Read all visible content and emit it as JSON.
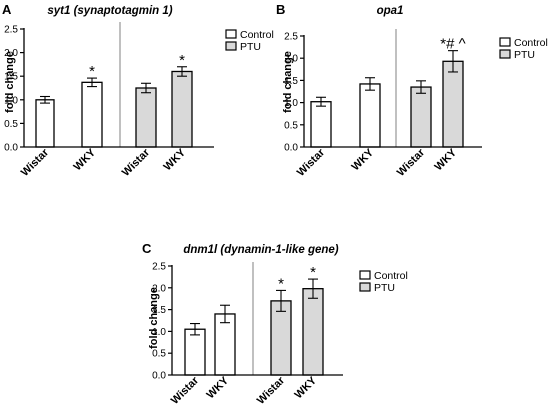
{
  "legend_colors": {
    "Control": "#ffffff",
    "PTU": "#d9d9d9"
  },
  "chart_data": [
    {
      "type": "bar",
      "panel_label": "A",
      "title": "syt1 (synaptotagmin 1)",
      "ylabel": "fold change",
      "xlabel": "",
      "ylim": [
        0,
        2.5
      ],
      "yticks": [
        "0.0",
        "0.5",
        "1.0",
        "1.5",
        "2.0",
        "2.5"
      ],
      "categories": [
        "Wistar",
        "WKY",
        "Wistar",
        "WKY"
      ],
      "groups": [
        "Control",
        "Control",
        "PTU",
        "PTU"
      ],
      "values": [
        1.0,
        1.37,
        1.25,
        1.6
      ],
      "errors": [
        0.07,
        0.09,
        0.1,
        0.1
      ],
      "annotations": [
        "",
        "*",
        "",
        "*"
      ],
      "legend": [
        "Control",
        "PTU"
      ],
      "legend_position": "top-right",
      "grid": false
    },
    {
      "type": "bar",
      "panel_label": "B",
      "title": "opa1",
      "ylabel": "fold change",
      "xlabel": "",
      "ylim": [
        0,
        2.5
      ],
      "yticks": [
        "0.0",
        "0.5",
        "1.0",
        "1.5",
        "2.0",
        "2.5"
      ],
      "categories": [
        "Wistar",
        "WKY",
        "Wistar",
        "WKY"
      ],
      "groups": [
        "Control",
        "Control",
        "PTU",
        "PTU"
      ],
      "values": [
        1.02,
        1.42,
        1.35,
        1.93
      ],
      "errors": [
        0.1,
        0.14,
        0.14,
        0.24
      ],
      "annotations": [
        "",
        "",
        "",
        "*# ^"
      ],
      "legend": [
        "Control",
        "PTU"
      ],
      "legend_position": "top-right",
      "grid": false
    },
    {
      "type": "bar",
      "panel_label": "C",
      "title": "dnm1l (dynamin-1-like gene)",
      "ylabel": "fold change",
      "xlabel": "",
      "ylim": [
        0,
        2.5
      ],
      "yticks": [
        "0.0",
        "0.5",
        "1.0",
        "1.5",
        "2.0",
        "2.5"
      ],
      "categories": [
        "Wistar",
        "WKY",
        "Wistar",
        "WKY"
      ],
      "groups": [
        "Control",
        "Control",
        "PTU",
        "PTU"
      ],
      "values": [
        1.05,
        1.4,
        1.7,
        1.98
      ],
      "errors": [
        0.13,
        0.2,
        0.24,
        0.22
      ],
      "annotations": [
        "",
        "",
        "*",
        "*"
      ],
      "legend": [
        "Control",
        "PTU"
      ],
      "legend_position": "top-right",
      "grid": false
    }
  ]
}
